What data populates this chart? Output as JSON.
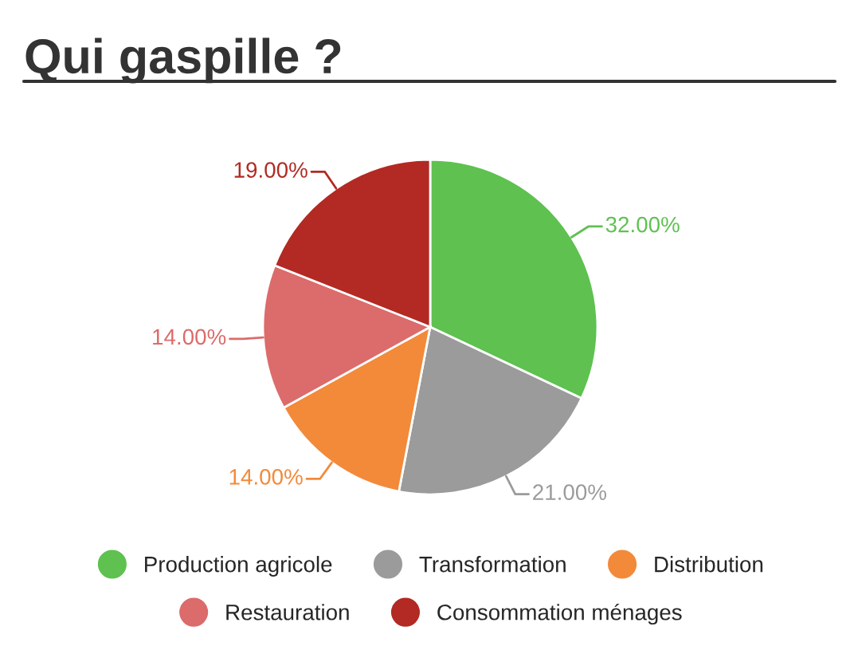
{
  "chart_data": {
    "type": "pie",
    "title": "Qui gaspille ?",
    "categories": [
      "Production agricole",
      "Transformation",
      "Distribution",
      "Restauration",
      "Consommation ménages"
    ],
    "values": [
      32,
      21,
      14,
      14,
      19
    ],
    "value_labels": [
      "32.00%",
      "21.00%",
      "14.00%",
      "14.00%",
      "19.00%"
    ],
    "colors": [
      "#5ec150",
      "#9b9b9b",
      "#f28a3a",
      "#dc6b6b",
      "#b22a23"
    ],
    "legend": "bottom"
  }
}
